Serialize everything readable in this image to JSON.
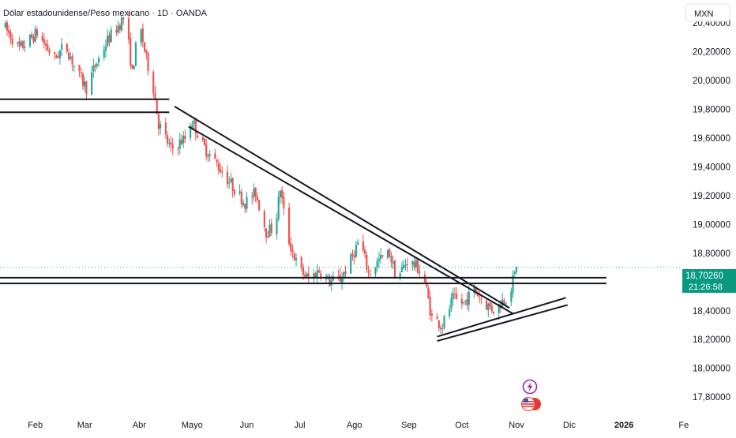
{
  "title": "Dólar estadounidense/Peso mexicano · 1D · OANDA",
  "currency_button": "MXN",
  "price_badge": {
    "price": "18,70260",
    "countdown": "21:26:58"
  },
  "colors": {
    "up": "#26a69a",
    "down": "#ef5350",
    "line": "#131722",
    "axis_text": "#131722",
    "badge_bg": "#089981",
    "grid_dot": "#22ab94",
    "icon_purple": "#9c27b0",
    "flag_red": "#e53935"
  },
  "icons": {
    "event_flash": "lightning-icon",
    "event_flag": "us-flag-icon"
  },
  "chart_data": {
    "type": "candlestick",
    "title": "Dólar estadounidense/Peso mexicano · 1D · OANDA",
    "ylim": [
      17.68,
      20.56
    ],
    "y_ticks": [
      {
        "value": 20.4,
        "label": "20,40000"
      },
      {
        "value": 20.2,
        "label": "20,20000"
      },
      {
        "value": 20.0,
        "label": "20,00000"
      },
      {
        "value": 19.8,
        "label": "19,80000"
      },
      {
        "value": 19.6,
        "label": "19,60000"
      },
      {
        "value": 19.4,
        "label": "19,40000"
      },
      {
        "value": 19.2,
        "label": "19,20000"
      },
      {
        "value": 19.0,
        "label": "19,00000"
      },
      {
        "value": 18.8,
        "label": "18,80000"
      },
      {
        "value": 18.4,
        "label": "18,40000"
      },
      {
        "value": 18.2,
        "label": "18,20000"
      },
      {
        "value": 18.0,
        "label": "18,00000"
      },
      {
        "value": 17.8,
        "label": "17,80000"
      }
    ],
    "x_ticks": [
      {
        "day": 31,
        "label": "Feb"
      },
      {
        "day": 59,
        "label": "Mar"
      },
      {
        "day": 90,
        "label": "Abr"
      },
      {
        "day": 120,
        "label": "Mayo"
      },
      {
        "day": 151,
        "label": "Jun"
      },
      {
        "day": 181,
        "label": "Jul"
      },
      {
        "day": 212,
        "label": "Ago"
      },
      {
        "day": 243,
        "label": "Sep"
      },
      {
        "day": 273,
        "label": "Oct"
      },
      {
        "day": 304,
        "label": "Nov"
      },
      {
        "day": 334,
        "label": "Dic"
      },
      {
        "day": 365,
        "label": "2026"
      },
      {
        "day": 396,
        "label": "Fe"
      }
    ],
    "last_price": 18.7026,
    "path_points": [
      [
        13,
        20.38
      ],
      [
        22,
        20.22
      ],
      [
        32,
        20.33
      ],
      [
        42,
        20.15
      ],
      [
        48,
        20.25
      ],
      [
        55,
        20.05
      ],
      [
        60,
        19.95
      ],
      [
        65,
        20.1
      ],
      [
        72,
        20.28
      ],
      [
        78,
        20.38
      ],
      [
        82,
        20.45
      ],
      [
        86,
        20.05
      ],
      [
        90,
        20.4
      ],
      [
        94,
        20.15
      ],
      [
        98,
        19.95
      ],
      [
        101,
        19.7
      ],
      [
        108,
        19.52
      ],
      [
        116,
        19.6
      ],
      [
        120,
        19.72
      ],
      [
        126,
        19.55
      ],
      [
        134,
        19.42
      ],
      [
        142,
        19.28
      ],
      [
        150,
        19.15
      ],
      [
        156,
        19.22
      ],
      [
        162,
        18.95
      ],
      [
        167,
        18.98
      ],
      [
        170,
        19.25
      ],
      [
        174,
        18.92
      ],
      [
        180,
        18.7
      ],
      [
        186,
        18.62
      ],
      [
        192,
        18.68
      ],
      [
        198,
        18.6
      ],
      [
        204,
        18.62
      ],
      [
        210,
        18.75
      ],
      [
        215,
        18.9
      ],
      [
        220,
        18.66
      ],
      [
        226,
        18.75
      ],
      [
        232,
        18.8
      ],
      [
        236,
        18.62
      ],
      [
        242,
        18.75
      ],
      [
        248,
        18.7
      ],
      [
        252,
        18.6
      ],
      [
        256,
        18.35
      ],
      [
        262,
        18.3
      ],
      [
        268,
        18.48
      ],
      [
        274,
        18.45
      ],
      [
        280,
        18.55
      ],
      [
        286,
        18.45
      ],
      [
        292,
        18.4
      ],
      [
        296,
        18.47
      ],
      [
        300,
        18.52
      ],
      [
        304,
        18.7
      ]
    ],
    "drawings": [
      {
        "name": "resistance-zone-upper",
        "type": "hline",
        "x1_day": 0,
        "x2_day": 107,
        "price": 19.87
      },
      {
        "name": "resistance-zone-lower",
        "type": "hline",
        "x1_day": 0,
        "x2_day": 107,
        "price": 19.78
      },
      {
        "name": "support-line-upper",
        "type": "hline",
        "x1_day": 0,
        "x2_day": 355,
        "price": 18.63
      },
      {
        "name": "support-line-lower",
        "type": "hline",
        "x1_day": 0,
        "x2_day": 355,
        "price": 18.59
      },
      {
        "name": "downtrend-line-outer",
        "type": "trend",
        "x1_day": 110,
        "y1": 19.82,
        "x2_day": 300,
        "y2": 18.42
      },
      {
        "name": "downtrend-line-inner",
        "type": "trend",
        "x1_day": 118,
        "y1": 19.68,
        "x2_day": 302,
        "y2": 18.38
      },
      {
        "name": "uptrend-line-upper",
        "type": "trend",
        "x1_day": 259,
        "y1": 18.22,
        "x2_day": 332,
        "y2": 18.49
      },
      {
        "name": "uptrend-line-lower",
        "type": "trend",
        "x1_day": 259,
        "y1": 18.19,
        "x2_day": 333,
        "y2": 18.44
      }
    ]
  }
}
